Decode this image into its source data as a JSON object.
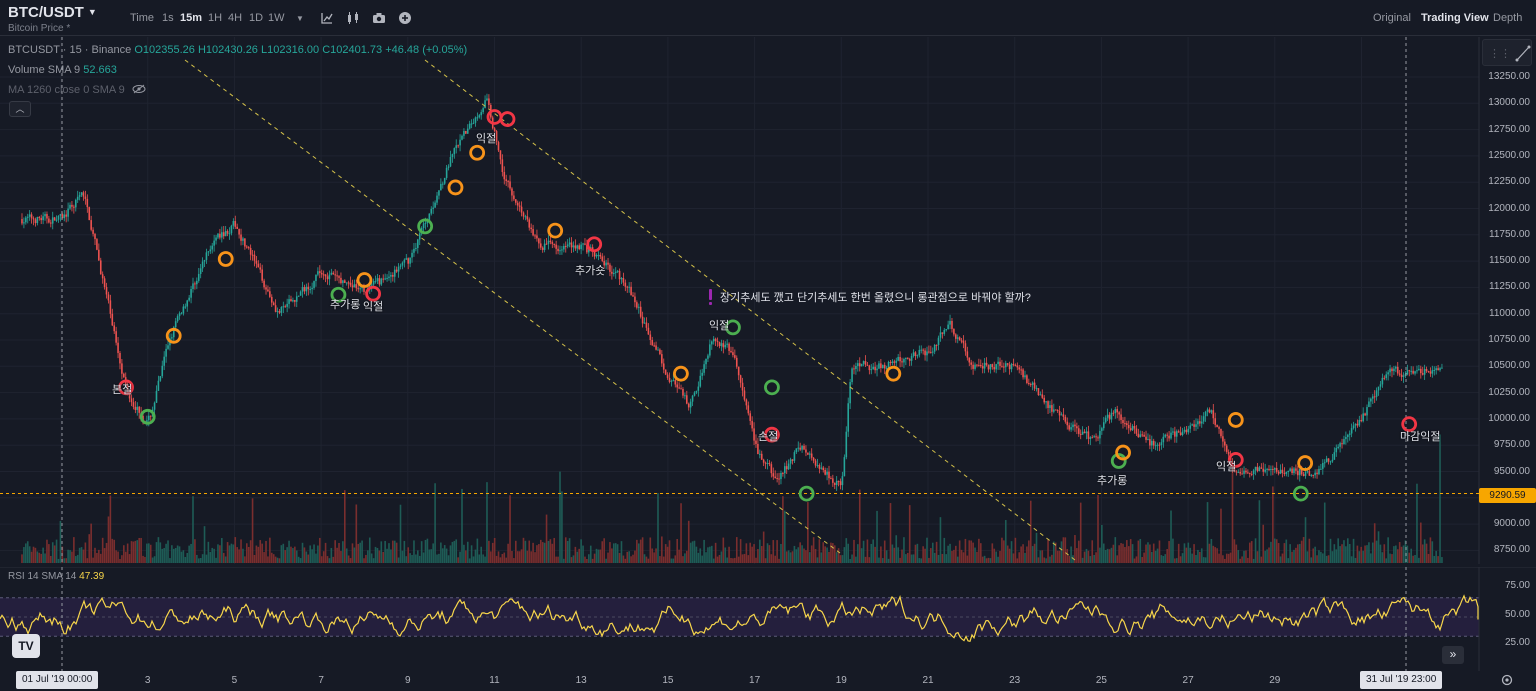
{
  "header": {
    "symbol": "BTC/USDT",
    "subtitle": "Bitcoin Price *",
    "timeframes": [
      "Time",
      "1s",
      "15m",
      "1H",
      "4H",
      "1D",
      "1W"
    ],
    "active_timeframe": "15m",
    "views": [
      "Original",
      "Trading View",
      "Depth"
    ],
    "active_view": "Trading View"
  },
  "legend": {
    "symbol_line": "BTCUSDT · 15 · Binance",
    "open": "O102355.26",
    "high": "H102430.26",
    "low": "L102316.00",
    "close": "C102401.73",
    "change": "+46.48 (+0.05%)",
    "volume_label": "Volume SMA 9",
    "volume_value": "52.663",
    "ma_label": "MA 1260 close 0 SMA 9"
  },
  "price_axis": {
    "labels": [
      "13250.00",
      "13000.00",
      "12750.00",
      "12500.00",
      "12250.00",
      "12000.00",
      "11750.00",
      "11500.00",
      "11250.00",
      "11000.00",
      "10750.00",
      "10500.00",
      "10250.00",
      "10000.00",
      "9750.00",
      "9500.00",
      "9250.00",
      "9000.00",
      "8750.00"
    ],
    "current_price": "9290.59"
  },
  "rsi": {
    "label": "RSI 14 SMA 14",
    "value": "47.39",
    "axis_labels": [
      "75.00",
      "50.00",
      "25.00"
    ]
  },
  "time_axis": {
    "labels": [
      "3",
      "5",
      "7",
      "9",
      "11",
      "13",
      "15",
      "17",
      "19",
      "21",
      "23",
      "25",
      "27",
      "29"
    ],
    "start_box": "01 Jul '19   00:00",
    "crosshair_box": "31 Jul '19   23:00"
  },
  "annotations": {
    "note": "장기추세도 깼고 단기추세도 한번 올렸으니 롱관점으로 바꿔야 할까?",
    "labels": [
      "본절",
      "익절",
      "추가롱",
      "익절",
      "추가숏",
      "익절",
      "손절",
      "추가롱",
      "익절",
      "마감익절"
    ]
  },
  "colors": {
    "up": "#26A69A",
    "down": "#EF5350",
    "price_line": "#F7A600",
    "trend_line": "#D4C14A",
    "rsi_line": "#F7D64B",
    "marker_red": "#F23645",
    "marker_orange": "#F7931A",
    "marker_green": "#4CAF50",
    "note_marker": "#9C27B0"
  },
  "icons": [
    "caret-down-icon",
    "line-tool-icon",
    "candles-icon",
    "camera-icon",
    "add-icon",
    "eye-off-icon",
    "tradingview-logo",
    "scroll-right-icon",
    "settings-icon"
  ],
  "chart_data": {
    "type": "candlestick",
    "title": "BTCUSDT · 15 · Binance",
    "y_range": [
      8650,
      13450
    ],
    "x_range_days": [
      "01 Jul '19",
      "31 Jul '19"
    ],
    "key_prices": [
      {
        "day": 1,
        "price": 11900
      },
      {
        "day": 1.5,
        "price": 12150
      },
      {
        "day": 2.5,
        "price": 10250
      },
      {
        "day": 3,
        "price": 9950
      },
      {
        "day": 3.5,
        "price": 10800
      },
      {
        "day": 4.5,
        "price": 11700
      },
      {
        "day": 5,
        "price": 11850
      },
      {
        "day": 6,
        "price": 11000
      },
      {
        "day": 7,
        "price": 11400
      },
      {
        "day": 8,
        "price": 11200
      },
      {
        "day": 9,
        "price": 11500
      },
      {
        "day": 9.5,
        "price": 12000
      },
      {
        "day": 10,
        "price": 12500
      },
      {
        "day": 10.8,
        "price": 13050
      },
      {
        "day": 11.2,
        "price": 12300
      },
      {
        "day": 12,
        "price": 11650
      },
      {
        "day": 13,
        "price": 11650
      },
      {
        "day": 14,
        "price": 11300
      },
      {
        "day": 15,
        "price": 10400
      },
      {
        "day": 15.5,
        "price": 10100
      },
      {
        "day": 16,
        "price": 10800
      },
      {
        "day": 16.5,
        "price": 10600
      },
      {
        "day": 17,
        "price": 9700
      },
      {
        "day": 17.5,
        "price": 9400
      },
      {
        "day": 18,
        "price": 9750
      },
      {
        "day": 19,
        "price": 9350
      },
      {
        "day": 19.2,
        "price": 10500
      },
      {
        "day": 20,
        "price": 10500
      },
      {
        "day": 21,
        "price": 10650
      },
      {
        "day": 21.5,
        "price": 10900
      },
      {
        "day": 22,
        "price": 10500
      },
      {
        "day": 23,
        "price": 10500
      },
      {
        "day": 24,
        "price": 10000
      },
      {
        "day": 24.8,
        "price": 9800
      },
      {
        "day": 25.3,
        "price": 10100
      },
      {
        "day": 26,
        "price": 9750
      },
      {
        "day": 27,
        "price": 9900
      },
      {
        "day": 27.5,
        "price": 10100
      },
      {
        "day": 28,
        "price": 9500
      },
      {
        "day": 29,
        "price": 9500
      },
      {
        "day": 30,
        "price": 9500
      },
      {
        "day": 31,
        "price": 10000
      },
      {
        "day": 31.5,
        "price": 10450
      }
    ],
    "markers": [
      {
        "day": 2.5,
        "price": 10300,
        "color": "red"
      },
      {
        "day": 3,
        "price": 10020,
        "color": "green"
      },
      {
        "day": 3.6,
        "price": 10790,
        "color": "orange"
      },
      {
        "day": 4.8,
        "price": 11520,
        "color": "orange"
      },
      {
        "day": 7.4,
        "price": 11180,
        "color": "green"
      },
      {
        "day": 8,
        "price": 11320,
        "color": "orange"
      },
      {
        "day": 8.2,
        "price": 11190,
        "color": "red"
      },
      {
        "day": 9.4,
        "price": 11830,
        "color": "green"
      },
      {
        "day": 10.1,
        "price": 12200,
        "color": "orange"
      },
      {
        "day": 10.6,
        "price": 12530,
        "color": "orange"
      },
      {
        "day": 11,
        "price": 12870,
        "color": "red"
      },
      {
        "day": 11.3,
        "price": 12850,
        "color": "red"
      },
      {
        "day": 12.4,
        "price": 11790,
        "color": "orange"
      },
      {
        "day": 13.3,
        "price": 11660,
        "color": "red"
      },
      {
        "day": 15.3,
        "price": 10430,
        "color": "orange"
      },
      {
        "day": 16.5,
        "price": 10870,
        "color": "green"
      },
      {
        "day": 17.4,
        "price": 10300,
        "color": "green"
      },
      {
        "day": 17.4,
        "price": 9850,
        "color": "red"
      },
      {
        "day": 18.2,
        "price": 9290,
        "color": "green"
      },
      {
        "day": 20.2,
        "price": 10430,
        "color": "orange"
      },
      {
        "day": 25.4,
        "price": 9600,
        "color": "green"
      },
      {
        "day": 25.5,
        "price": 9680,
        "color": "orange"
      },
      {
        "day": 28.1,
        "price": 9990,
        "color": "orange"
      },
      {
        "day": 28.1,
        "price": 9610,
        "color": "red"
      },
      {
        "day": 29.6,
        "price": 9290,
        "color": "green"
      },
      {
        "day": 29.7,
        "price": 9580,
        "color": "orange"
      },
      {
        "day": 32.1,
        "price": 9950,
        "color": "red"
      }
    ],
    "price_line": 9290.59,
    "rsi": {
      "range": [
        0,
        100
      ],
      "band": [
        30,
        70
      ],
      "mid": 50,
      "last": 47.39
    }
  }
}
